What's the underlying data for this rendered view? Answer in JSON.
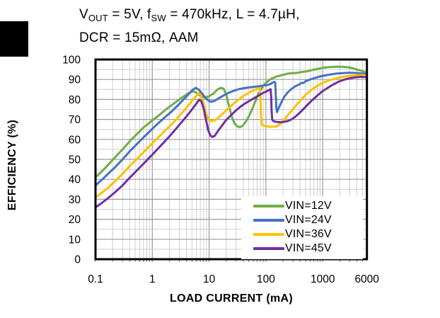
{
  "title": {
    "line1_parts": [
      {
        "text": "V"
      },
      {
        "text": "OUT",
        "sub": true
      },
      {
        "text": " = 5V, f"
      },
      {
        "text": "SW",
        "sub": true
      },
      {
        "text": " = 470kHz, L = 4.7µH,"
      }
    ],
    "line2": "DCR = 15mΩ, AAM"
  },
  "chart_data": {
    "type": "line",
    "title": "VOUT = 5V, fSW = 470kHz, L = 4.7µH, DCR = 15mΩ, AAM",
    "xlabel": "LOAD CURRENT (mA)",
    "ylabel": "EFFICIENCY (%)",
    "x_scale": "log",
    "xlim": [
      0.1,
      6000
    ],
    "ylim": [
      0,
      100
    ],
    "x_ticks": [
      "0.1",
      "1",
      "10",
      "100",
      "1000",
      "6000"
    ],
    "x_tick_values": [
      0.1,
      1,
      10,
      100,
      1000,
      6000
    ],
    "y_ticks": [
      0,
      10,
      20,
      30,
      40,
      50,
      60,
      70,
      80,
      90,
      100
    ],
    "grid": {
      "y_minor_step": 5,
      "minor_color": "#cfcfcf",
      "major_color": "#9a9a9a",
      "border_color": "#000000",
      "tick_color": "#777777"
    },
    "legend": {
      "position": "inside-bottom-right"
    },
    "line_width": 3,
    "series": [
      {
        "name": "VIN=12V",
        "color": "#70AD47",
        "points": [
          [
            0.1,
            41
          ],
          [
            0.13,
            44
          ],
          [
            0.17,
            47.5
          ],
          [
            0.22,
            51
          ],
          [
            0.3,
            55
          ],
          [
            0.4,
            59
          ],
          [
            0.55,
            63
          ],
          [
            0.7,
            66
          ],
          [
            0.85,
            67.8
          ],
          [
            1,
            69.5
          ],
          [
            1.3,
            72
          ],
          [
            1.7,
            74.8
          ],
          [
            2.2,
            77.2
          ],
          [
            3,
            80
          ],
          [
            4,
            82.5
          ],
          [
            5,
            84
          ],
          [
            5.6,
            83.8
          ],
          [
            6.5,
            82.4
          ],
          [
            7.5,
            81.4
          ],
          [
            8.5,
            81
          ],
          [
            10,
            81.6
          ],
          [
            12,
            83
          ],
          [
            14,
            84.9
          ],
          [
            16,
            85.8
          ],
          [
            18,
            85.4
          ],
          [
            20,
            82.5
          ],
          [
            22,
            77.5
          ],
          [
            25,
            71.5
          ],
          [
            28,
            68
          ],
          [
            31,
            66.6
          ],
          [
            35,
            66.1
          ],
          [
            39,
            66.8
          ],
          [
            44,
            68.8
          ],
          [
            50,
            71.5
          ],
          [
            57,
            75
          ],
          [
            65,
            79
          ],
          [
            74,
            82.8
          ],
          [
            84,
            85.6
          ],
          [
            95,
            87.6
          ],
          [
            108,
            89.2
          ],
          [
            125,
            90.4
          ],
          [
            145,
            91.2
          ],
          [
            170,
            91.8
          ],
          [
            200,
            92.3
          ],
          [
            240,
            92.9
          ],
          [
            290,
            93.2
          ],
          [
            340,
            93.2
          ],
          [
            400,
            93.6
          ],
          [
            470,
            93.9
          ],
          [
            550,
            94.2
          ],
          [
            650,
            94.7
          ],
          [
            800,
            95.2
          ],
          [
            1000,
            95.8
          ],
          [
            1300,
            96.2
          ],
          [
            1700,
            96.4
          ],
          [
            2200,
            96.4
          ],
          [
            2800,
            96.1
          ],
          [
            3400,
            95.6
          ],
          [
            4200,
            94.8
          ],
          [
            5000,
            94.2
          ],
          [
            6000,
            93.5
          ]
        ]
      },
      {
        "name": "VIN=24V",
        "color": "#4472C4",
        "points": [
          [
            0.1,
            37
          ],
          [
            0.13,
            39.8
          ],
          [
            0.17,
            43
          ],
          [
            0.22,
            46
          ],
          [
            0.3,
            50
          ],
          [
            0.4,
            54
          ],
          [
            0.55,
            58
          ],
          [
            0.7,
            61
          ],
          [
            0.85,
            63.3
          ],
          [
            1,
            65.3
          ],
          [
            1.3,
            68.3
          ],
          [
            1.7,
            71.3
          ],
          [
            2.2,
            74
          ],
          [
            3,
            77.8
          ],
          [
            4,
            81.5
          ],
          [
            5,
            84.5
          ],
          [
            5.8,
            85.8
          ],
          [
            6.6,
            84.9
          ],
          [
            7.6,
            82.8
          ],
          [
            8.6,
            80.8
          ],
          [
            10,
            79.2
          ],
          [
            11,
            78.9
          ],
          [
            12.5,
            79.3
          ],
          [
            15,
            80.7
          ],
          [
            18,
            82
          ],
          [
            22,
            83.3
          ],
          [
            27,
            84.3
          ],
          [
            33,
            85.1
          ],
          [
            40,
            85.6
          ],
          [
            50,
            86
          ],
          [
            62,
            86.3
          ],
          [
            75,
            86.6
          ],
          [
            90,
            87
          ],
          [
            105,
            87.2
          ],
          [
            120,
            87.7
          ],
          [
            130,
            88.4
          ],
          [
            140,
            88.8
          ],
          [
            146,
            88.5
          ],
          [
            149,
            83
          ],
          [
            153,
            75.5
          ],
          [
            157,
            73.6
          ],
          [
            165,
            75.3
          ],
          [
            185,
            78.3
          ],
          [
            210,
            81.3
          ],
          [
            240,
            83.4
          ],
          [
            280,
            85.2
          ],
          [
            330,
            86.6
          ],
          [
            380,
            87.4
          ],
          [
            420,
            88.2
          ],
          [
            460,
            88.3
          ],
          [
            500,
            89.1
          ],
          [
            600,
            90
          ],
          [
            700,
            90.6
          ],
          [
            850,
            91.3
          ],
          [
            1000,
            91.8
          ],
          [
            1300,
            92.4
          ],
          [
            1700,
            92.9
          ],
          [
            2200,
            93.2
          ],
          [
            2900,
            93.4
          ],
          [
            3600,
            93.3
          ],
          [
            4400,
            93.1
          ],
          [
            5200,
            92.9
          ],
          [
            6000,
            92.7
          ]
        ]
      },
      {
        "name": "VIN=36V",
        "color": "#FFC000",
        "points": [
          [
            0.1,
            31
          ],
          [
            0.13,
            33.3
          ],
          [
            0.17,
            36
          ],
          [
            0.22,
            39
          ],
          [
            0.3,
            42.8
          ],
          [
            0.4,
            46.6
          ],
          [
            0.55,
            50.6
          ],
          [
            0.7,
            53.6
          ],
          [
            0.85,
            56
          ],
          [
            1,
            58
          ],
          [
            1.3,
            61.2
          ],
          [
            1.7,
            64.5
          ],
          [
            2.2,
            67.6
          ],
          [
            3,
            71.8
          ],
          [
            4,
            75.8
          ],
          [
            5,
            79.3
          ],
          [
            6,
            82
          ],
          [
            6.6,
            83.2
          ],
          [
            7.2,
            82
          ],
          [
            7.9,
            78.5
          ],
          [
            8.7,
            73.5
          ],
          [
            9.5,
            70.5
          ],
          [
            10.5,
            69.3
          ],
          [
            11.5,
            69.1
          ],
          [
            13,
            69.8
          ],
          [
            15,
            71.2
          ],
          [
            18,
            73.3
          ],
          [
            22,
            75.6
          ],
          [
            27,
            77.9
          ],
          [
            33,
            79.9
          ],
          [
            40,
            81.7
          ],
          [
            48,
            83.1
          ],
          [
            57,
            84.2
          ],
          [
            66,
            85
          ],
          [
            73,
            85.4
          ],
          [
            78,
            85.6
          ],
          [
            80,
            82
          ],
          [
            82,
            72
          ],
          [
            84,
            67.8
          ],
          [
            90,
            66.9
          ],
          [
            105,
            66.5
          ],
          [
            125,
            66.3
          ],
          [
            145,
            66.4
          ],
          [
            160,
            66.8
          ],
          [
            185,
            68
          ],
          [
            210,
            69.9
          ],
          [
            240,
            71.9
          ],
          [
            280,
            74.2
          ],
          [
            330,
            76.6
          ],
          [
            380,
            78.6
          ],
          [
            440,
            80.6
          ],
          [
            510,
            82.5
          ],
          [
            600,
            84.2
          ],
          [
            700,
            85.7
          ],
          [
            850,
            87.2
          ],
          [
            1000,
            88.3
          ],
          [
            1250,
            89.4
          ],
          [
            1550,
            90.2
          ],
          [
            1950,
            91
          ],
          [
            2450,
            91.5
          ],
          [
            3000,
            91.8
          ],
          [
            3800,
            92.1
          ],
          [
            4800,
            92.2
          ],
          [
            6000,
            92
          ]
        ]
      },
      {
        "name": "VIN=45V",
        "color": "#7030A0",
        "points": [
          [
            0.1,
            26
          ],
          [
            0.13,
            28.2
          ],
          [
            0.17,
            30.8
          ],
          [
            0.22,
            33.5
          ],
          [
            0.3,
            37
          ],
          [
            0.4,
            40.8
          ],
          [
            0.55,
            44.8
          ],
          [
            0.7,
            47.8
          ],
          [
            0.85,
            50.3
          ],
          [
            1,
            52.3
          ],
          [
            1.3,
            55.8
          ],
          [
            1.7,
            59.3
          ],
          [
            2.2,
            62.8
          ],
          [
            3,
            67.3
          ],
          [
            4,
            71.5
          ],
          [
            5,
            75
          ],
          [
            6,
            78
          ],
          [
            6.7,
            79.9
          ],
          [
            7.3,
            79.2
          ],
          [
            8,
            75.5
          ],
          [
            8.8,
            70
          ],
          [
            9.6,
            64.8
          ],
          [
            10.5,
            62
          ],
          [
            11.3,
            61.2
          ],
          [
            12.5,
            61.7
          ],
          [
            14,
            63.8
          ],
          [
            16.5,
            66.6
          ],
          [
            20,
            69.7
          ],
          [
            24,
            72
          ],
          [
            29,
            74.2
          ],
          [
            35,
            76.2
          ],
          [
            42,
            77.8
          ],
          [
            50,
            79.1
          ],
          [
            60,
            80.4
          ],
          [
            72,
            81.7
          ],
          [
            85,
            82.9
          ],
          [
            95,
            83.6
          ],
          [
            105,
            84.2
          ],
          [
            115,
            84.8
          ],
          [
            121,
            85.1
          ],
          [
            124,
            81
          ],
          [
            126,
            74
          ],
          [
            129,
            69.9
          ],
          [
            135,
            69.2
          ],
          [
            150,
            68.8
          ],
          [
            170,
            68.6
          ],
          [
            200,
            68.7
          ],
          [
            230,
            69
          ],
          [
            260,
            69.5
          ],
          [
            300,
            70.5
          ],
          [
            350,
            72
          ],
          [
            410,
            73.8
          ],
          [
            480,
            75.8
          ],
          [
            560,
            77.8
          ],
          [
            650,
            79.6
          ],
          [
            760,
            81.3
          ],
          [
            880,
            82.9
          ],
          [
            1000,
            84.2
          ],
          [
            1250,
            86
          ],
          [
            1550,
            87.6
          ],
          [
            1950,
            89
          ],
          [
            2450,
            90
          ],
          [
            3000,
            90.6
          ],
          [
            3800,
            91.1
          ],
          [
            4800,
            91.3
          ],
          [
            6000,
            91.1
          ]
        ]
      }
    ]
  }
}
